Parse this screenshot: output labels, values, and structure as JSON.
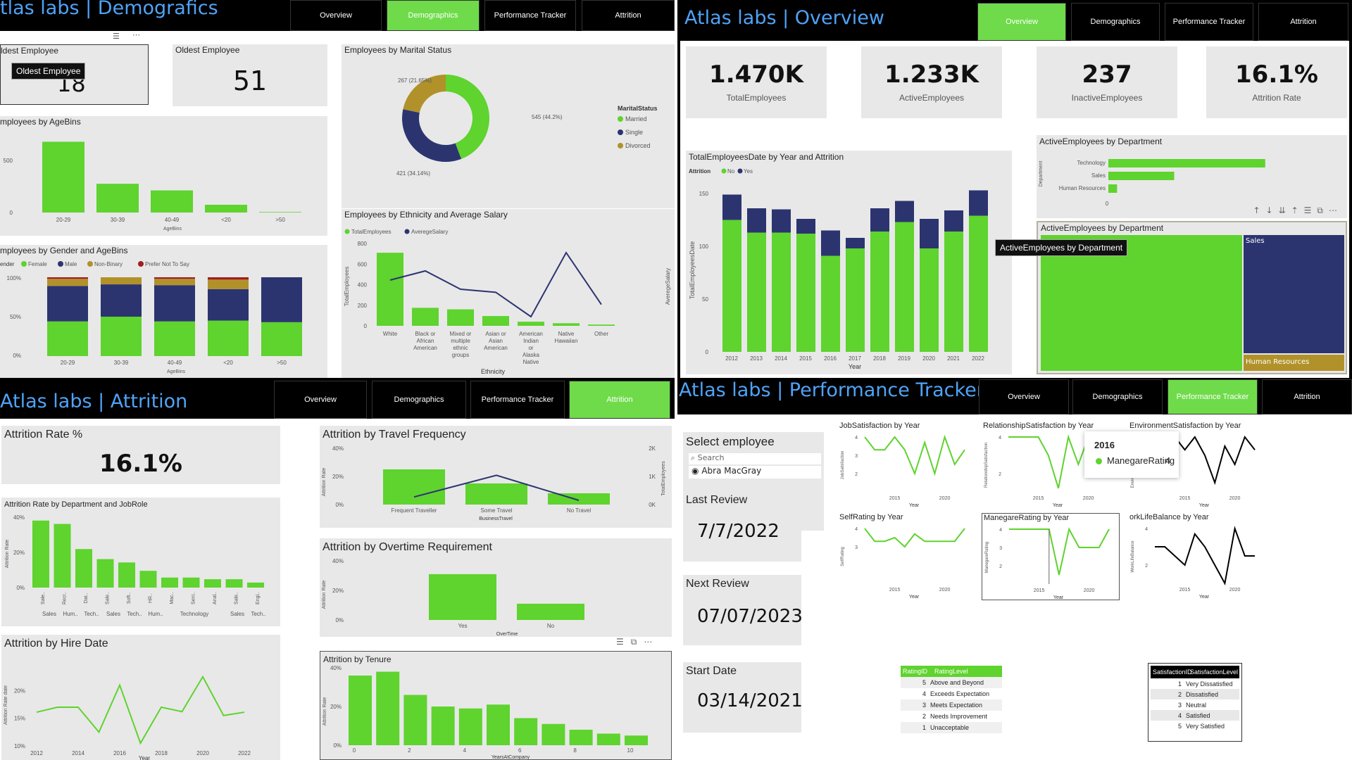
{
  "colors": {
    "green": "#5fd32e",
    "navy": "#2c3470",
    "gold": "#b1922a",
    "red": "#a21e1e",
    "title": "#4fa3f7"
  },
  "nav": [
    "Overview",
    "Demographics",
    "Performance Tracker",
    "Attrition"
  ],
  "demographics": {
    "title": "tlas labs | Demografics",
    "active": 1,
    "youngest_title": "ldest Employee",
    "youngest_value": "18",
    "youngest_tooltip": "Oldest Employee",
    "oldest_title": "Oldest Employee",
    "oldest_value": "51",
    "marital": {
      "title": "Employees by Marital Status",
      "legend_title": "MaritalStatus",
      "labels": [
        "545 (44.2%)",
        "421 (34.14%)",
        "267 (21.65%)"
      ]
    },
    "agebins": {
      "title": "mployees by AgeBins",
      "xlabel": "AgeBins",
      "ylabel": "ActiveEmployees"
    },
    "gender": {
      "title": "mployees by Gender and AgeBins",
      "legend_prefix": "ender",
      "xlabel": "AgeBins",
      "ylabel": "ActiveEmployees"
    },
    "ethnicity": {
      "title": "Employees by Ethnicity and Average Salary",
      "legend": [
        "TotalEmployees",
        "AveregeSalary"
      ],
      "xlabel": "Ethnicity",
      "ylabel": "TotalEmployees",
      "y2label": "AveregeSalary"
    }
  },
  "overview": {
    "title": "Atlas labs | Overview",
    "active": 0,
    "kpis": [
      {
        "value": "1.470K",
        "label": "TotalEmployees"
      },
      {
        "value": "1.233K",
        "label": "ActiveEmployees"
      },
      {
        "value": "237",
        "label": "InactiveEmployees"
      },
      {
        "value": "16.1%",
        "label": "Attrition Rate"
      }
    ],
    "year_chart": {
      "title": "TotalEmployeesDate by Year and Attrition",
      "legend_title": "Attrition",
      "legend": [
        "No",
        "Yes"
      ],
      "xlabel": "Year",
      "ylabel": "TotalEmployeesDate"
    },
    "dept_bar": {
      "title": "ActiveEmployees by Department",
      "ylabel": "Department"
    },
    "treemap": {
      "title": "ActiveEmployees by Department",
      "tooltip": "ActiveEmployees by Department",
      "labels": [
        "Sales",
        "Human Resources"
      ]
    }
  },
  "attrition": {
    "title": "Atlas labs | Attrition",
    "active": 3,
    "rate_title": "Attrition Rate %",
    "rate_value": "16.1%",
    "dept_role": {
      "title": "Attrition Rate by Department and JobRole",
      "ylabel": "Attrition Rate"
    },
    "hire": {
      "title": "Attrition by Hire Date",
      "xlabel": "Year",
      "ylabel": "Attrition Rate date"
    },
    "travel": {
      "title": "Attrition by Travel Frequency",
      "xlabel": "BusinessTravel",
      "ylabel": "Attrition Rate",
      "y2label": "TotalEmployees"
    },
    "overtime": {
      "title": "Attrition by Overtime Requirement",
      "xlabel": "OverTime",
      "ylabel": "Attrition Rate"
    },
    "tenure": {
      "title": "Attrition by Tenure",
      "xlabel": "YearsAtCompany",
      "ylabel": "Attrition Rate"
    }
  },
  "performance": {
    "title": "Atlas labs | Performance Tracker",
    "active": 2,
    "select_title": "Select employee",
    "search_placeholder": "Search",
    "employee": "Abra MacGray",
    "last_review_label": "Last Review",
    "last_review": "7/7/2022",
    "next_review_label": "Next Review",
    "next_review": "07/07/2023",
    "start_date_label": "Start Date",
    "start_date": "03/14/2021",
    "charts": [
      {
        "title": "JobSatisfaction by Year",
        "ylabel": "JobSatisfaction"
      },
      {
        "title": "RelationshipSatisfaction by Year",
        "ylabel": "RelationshipSatisfaction"
      },
      {
        "title": "EnvironmentSatisfaction by Year",
        "ylabel": "EnvironmentSatisfaction"
      },
      {
        "title": "SelfRating by Year",
        "ylabel": "SelfRating"
      },
      {
        "title": "ManegareRating by Year",
        "ylabel": "ManegareRating"
      },
      {
        "title": "orkLifeBalance by Year",
        "ylabel": "WorkLifeBalance"
      }
    ],
    "tooltip": {
      "year": "2016",
      "label": "ManegareRating",
      "value": "4"
    },
    "rating_table": {
      "headers": [
        "RatingID",
        "RatingLevel"
      ],
      "rows": [
        [
          "5",
          "Above and Beyond"
        ],
        [
          "4",
          "Exceeds Expectation"
        ],
        [
          "3",
          "Meets Expectation"
        ],
        [
          "2",
          "Needs Improvement"
        ],
        [
          "1",
          "Unacceptable"
        ]
      ]
    },
    "satisfaction_table": {
      "headers": [
        "SatisfactionID",
        "SatisfactionLevel"
      ],
      "rows": [
        [
          "1",
          "Very Dissatisfied"
        ],
        [
          "2",
          "Dissatisfied"
        ],
        [
          "3",
          "Neutral"
        ],
        [
          "4",
          "Satisfied"
        ],
        [
          "5",
          "Very Satisfied"
        ]
      ]
    }
  },
  "chart_data": [
    {
      "type": "pie",
      "title": "Employees by Marital Status",
      "categories": [
        "Married",
        "Single",
        "Divorced"
      ],
      "values": [
        545,
        421,
        267
      ],
      "labels": [
        "545 (44.2%)",
        "421 (34.14%)",
        "267 (21.65%)"
      ]
    },
    {
      "type": "bar",
      "title": "mployees by AgeBins",
      "categories": [
        "20-29",
        "30-39",
        "40-49",
        "<20",
        ">50"
      ],
      "values": [
        640,
        260,
        200,
        70,
        5
      ],
      "yticks": [
        "0",
        "500"
      ],
      "ylim": [
        0,
        700
      ]
    },
    {
      "type": "bar",
      "title": "mployees by Gender and AgeBins",
      "stacked": true,
      "categories": [
        "20-29",
        "30-39",
        "40-49",
        "<20",
        ">50"
      ],
      "legend": [
        "Female",
        "Male",
        "Non-Binary",
        "Prefer Not To Say"
      ],
      "series": [
        {
          "name": "Female",
          "values": [
            44,
            50,
            44,
            45,
            43
          ]
        },
        {
          "name": "Male",
          "values": [
            45,
            41,
            46,
            40,
            57
          ]
        },
        {
          "name": "Non-Binary",
          "values": [
            9,
            9,
            8,
            12,
            0
          ]
        },
        {
          "name": "Prefer Not To Say",
          "values": [
            2,
            0,
            2,
            3,
            0
          ]
        }
      ],
      "yticks": [
        "0%",
        "50%",
        "100%"
      ]
    },
    {
      "type": "bar",
      "title": "Employees by Ethnicity and Average Salary",
      "categories": [
        "White",
        "Black or African American",
        "Mixed or multiple ethnic groups",
        "Asian or Asian American",
        "American Indian or Alaska Native",
        "Native Hawaiian",
        "Other"
      ],
      "series": [
        {
          "name": "TotalEmployees",
          "values": [
            710,
            175,
            160,
            95,
            40,
            25,
            12
          ]
        },
        {
          "name": "AveregeSalary",
          "values": [
            120000,
            123000,
            117000,
            116000,
            108000,
            129000,
            112000
          ]
        }
      ],
      "yticks": [
        "0",
        "200",
        "400",
        "600",
        "800"
      ],
      "y2ticks": [
        "110K",
        "120K",
        "130K"
      ],
      "ylim": [
        0,
        800
      ],
      "y2lim": [
        105000,
        132000
      ]
    },
    {
      "type": "bar",
      "title": "TotalEmployeesDate by Year and Attrition",
      "stacked": true,
      "categories": [
        "2012",
        "2013",
        "2014",
        "2015",
        "2016",
        "2017",
        "2018",
        "2019",
        "2020",
        "2021",
        "2022"
      ],
      "series": [
        {
          "name": "No",
          "values": [
            125,
            113,
            113,
            112,
            91,
            98,
            114,
            123,
            98,
            114,
            129
          ]
        },
        {
          "name": "Yes",
          "values": [
            24,
            23,
            22,
            14,
            24,
            10,
            22,
            20,
            28,
            20,
            24
          ]
        }
      ],
      "yticks": [
        "0",
        "50",
        "100",
        "150"
      ],
      "ylim": [
        0,
        160
      ]
    },
    {
      "type": "bar",
      "title": "ActiveEmployees by Department",
      "orientation": "horizontal",
      "categories": [
        "Technology",
        "Sales",
        "Human Resources"
      ],
      "values": [
        810,
        340,
        45
      ],
      "xticks": [
        "0",
        "1000"
      ],
      "xlim": [
        0,
        1000
      ]
    },
    {
      "type": "heatmap",
      "title": "ActiveEmployees by Department",
      "categories": [
        "Technology",
        "Sales",
        "Human Resources"
      ],
      "values": [
        810,
        340,
        45
      ]
    },
    {
      "type": "bar",
      "title": "Attrition Rate by Department and JobRole",
      "categories": [
        "Sale..",
        "Recr..",
        "Dat..",
        "Sale..",
        "Soft..",
        "HR..",
        "Mac..",
        "Seni..",
        "Anal..",
        "Sale..",
        "Engi.."
      ],
      "groups": [
        "Sales",
        "Hum..",
        "Tech..",
        "Sales",
        "Tech..",
        "Hum..",
        "Technology",
        "Sales",
        "Tech.."
      ],
      "values": [
        40,
        38,
        23,
        17,
        15,
        10,
        6,
        6,
        5,
        5,
        3
      ],
      "yticks": [
        "0%",
        "20%",
        "40%"
      ],
      "ylim": [
        0,
        42
      ]
    },
    {
      "type": "line",
      "title": "Attrition by Hire Date",
      "x": [
        "2012",
        "2013",
        "2014",
        "2015",
        "2016",
        "2017",
        "2018",
        "2019",
        "2020",
        "2021",
        "2022"
      ],
      "values": [
        16.1,
        17,
        17,
        12.5,
        21,
        10.5,
        17,
        16.2,
        22.5,
        15.5,
        16.1
      ],
      "yticks": [
        "10%",
        "15%",
        "20%"
      ],
      "ylim": [
        10,
        24
      ]
    },
    {
      "type": "bar",
      "title": "Attrition by Travel Frequency",
      "categories": [
        "Frequent Traveller",
        "Some Travel",
        "No Travel"
      ],
      "series": [
        {
          "name": "Attrition Rate",
          "values": [
            25,
            15,
            8
          ]
        },
        {
          "name": "TotalEmployees",
          "values": [
            270,
            1040,
            150
          ]
        }
      ],
      "yticks": [
        "0%",
        "20%",
        "40%"
      ],
      "y2ticks": [
        "0K",
        "1K",
        "2K"
      ],
      "ylim": [
        0,
        40
      ],
      "y2lim": [
        0,
        2000
      ]
    },
    {
      "type": "bar",
      "title": "Attrition by Overtime Requirement",
      "categories": [
        "Yes",
        "No"
      ],
      "values": [
        31,
        11
      ],
      "yticks": [
        "0%",
        "20%",
        "40%"
      ],
      "ylim": [
        0,
        40
      ]
    },
    {
      "type": "bar",
      "title": "Attrition by Tenure",
      "categories": [
        "0",
        "1",
        "2",
        "3",
        "4",
        "5",
        "6",
        "7",
        "8",
        "9",
        "10"
      ],
      "values": [
        36,
        38,
        26,
        20,
        19,
        21,
        14,
        11,
        8,
        6,
        5
      ],
      "xticks": [
        "0",
        "2",
        "4",
        "6",
        "8",
        "10"
      ],
      "yticks": [
        "0%",
        "20%",
        "40%"
      ],
      "ylim": [
        0,
        40
      ]
    },
    {
      "type": "line",
      "title": "JobSatisfaction by Year",
      "x": [
        2012,
        2013,
        2014,
        2015,
        2016,
        2017,
        2018,
        2019,
        2020,
        2021,
        2022
      ],
      "values": [
        4,
        3.3,
        3.3,
        4,
        3.3,
        2,
        3.7,
        2,
        4,
        2.5,
        3.3
      ],
      "yticks": [
        "2",
        "3",
        "4"
      ],
      "xticks": [
        "2015",
        "2020"
      ]
    },
    {
      "type": "line",
      "title": "RelationshipSatisfaction by Year",
      "x": [
        2012,
        2013,
        2014,
        2015,
        2016,
        2017,
        2018,
        2019,
        2020,
        2021,
        2022
      ],
      "values": [
        4,
        4,
        4,
        4,
        3,
        1.2,
        4,
        2.5,
        4,
        4,
        4
      ],
      "yticks": [
        "2",
        "4"
      ],
      "xticks": [
        "2015",
        "2020"
      ]
    },
    {
      "type": "line",
      "title": "EnvironmentSatisfaction by Year",
      "x": [
        2012,
        2013,
        2014,
        2015,
        2016,
        2017,
        2018,
        2019,
        2020,
        2021,
        2022
      ],
      "values": [
        3.3,
        4,
        4,
        3.3,
        4,
        3,
        1.5,
        3.5,
        2.5,
        4,
        3.3
      ],
      "yticks": [
        "2",
        "4"
      ],
      "xticks": [
        "2015",
        "2020"
      ]
    },
    {
      "type": "line",
      "title": "SelfRating by Year",
      "x": [
        2012,
        2013,
        2014,
        2015,
        2016,
        2017,
        2018,
        2019,
        2020,
        2021,
        2022
      ],
      "values": [
        4,
        3.3,
        3.3,
        3.5,
        3,
        3.7,
        3.3,
        3.3,
        3.3,
        3.3,
        4
      ],
      "yticks": [
        "3",
        "4"
      ],
      "xticks": [
        "2015",
        "2020"
      ]
    },
    {
      "type": "line",
      "title": "ManegareRating by Year",
      "x": [
        2012,
        2013,
        2014,
        2015,
        2016,
        2017,
        2018,
        2019,
        2020,
        2021,
        2022
      ],
      "values": [
        4,
        4,
        4,
        4,
        4,
        1.5,
        4,
        3,
        3,
        3,
        4
      ],
      "yticks": [
        "2",
        "3",
        "4"
      ],
      "xticks": [
        "2015",
        "2020"
      ]
    },
    {
      "type": "line",
      "title": "orkLifeBalance by Year",
      "x": [
        2012,
        2013,
        2014,
        2015,
        2016,
        2017,
        2018,
        2019,
        2020,
        2021,
        2022
      ],
      "values": [
        3,
        3,
        2.5,
        2,
        3.7,
        3,
        2,
        1,
        4,
        2.5,
        2.5
      ],
      "yticks": [
        "2",
        "4"
      ],
      "xticks": [
        "2015",
        "2020"
      ]
    }
  ]
}
